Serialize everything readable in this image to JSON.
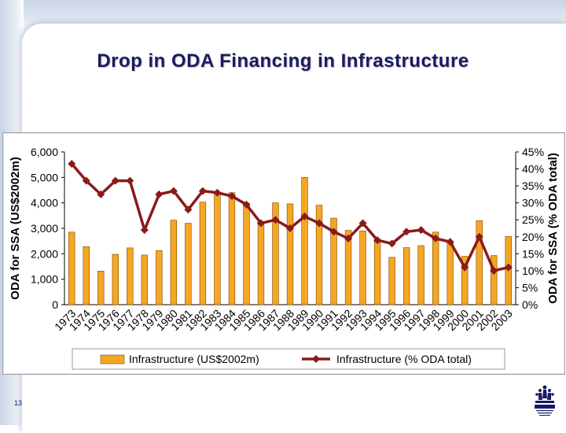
{
  "slide": {
    "title": "Drop in ODA Financing in Infrastructure",
    "page_number": "13"
  },
  "colors": {
    "bar_fill": "#f5a623",
    "bar_stroke": "#7a4a00",
    "line": "#8b1a1a",
    "title": "#1a1a66"
  },
  "chart_data": {
    "type": "bar",
    "categories": [
      "1973",
      "1974",
      "1975",
      "1976",
      "1977",
      "1978",
      "1979",
      "1980",
      "1981",
      "1982",
      "1983",
      "1984",
      "1985",
      "1986",
      "1987",
      "1988",
      "1989",
      "1990",
      "1991",
      "1992",
      "1993",
      "1994",
      "1995",
      "1996",
      "1997",
      "1998",
      "1999",
      "2000",
      "2001",
      "2002",
      "2003"
    ],
    "series": [
      {
        "name": "Infrastructure (US$2002m)",
        "type": "bar",
        "axis": "left",
        "values": [
          2850,
          2280,
          1320,
          1980,
          2230,
          1950,
          2130,
          3320,
          3200,
          4030,
          4400,
          4400,
          3980,
          3260,
          4000,
          3960,
          5000,
          3910,
          3400,
          2920,
          2900,
          2560,
          1860,
          2240,
          2320,
          2850,
          2440,
          1900,
          3300,
          1930,
          2680
        ]
      },
      {
        "name": "Infrastructure (% ODA total)",
        "type": "line",
        "axis": "right",
        "values": [
          41.5,
          36.5,
          32.5,
          36.5,
          36.5,
          22.0,
          32.5,
          33.5,
          28.0,
          33.5,
          33.0,
          32.0,
          29.5,
          24.0,
          25.0,
          22.5,
          26.0,
          24.0,
          21.5,
          19.5,
          24.0,
          19.0,
          18.0,
          21.5,
          22.0,
          19.5,
          18.5,
          11.0,
          20.0,
          10.0,
          11.0
        ]
      }
    ],
    "ylabel": "ODA for SSA (US$2002m)",
    "y2label": "ODA for SSA (% ODA total)",
    "ylim": [
      0,
      6000
    ],
    "y2lim": [
      0,
      45
    ],
    "yticks": [
      "0",
      "1,000",
      "2,000",
      "3,000",
      "4,000",
      "5,000",
      "6,000"
    ],
    "y2ticks": [
      "0%",
      "5%",
      "10%",
      "15%",
      "20%",
      "25%",
      "30%",
      "35%",
      "40%",
      "45%"
    ],
    "legend_position": "bottom",
    "grid": false
  }
}
